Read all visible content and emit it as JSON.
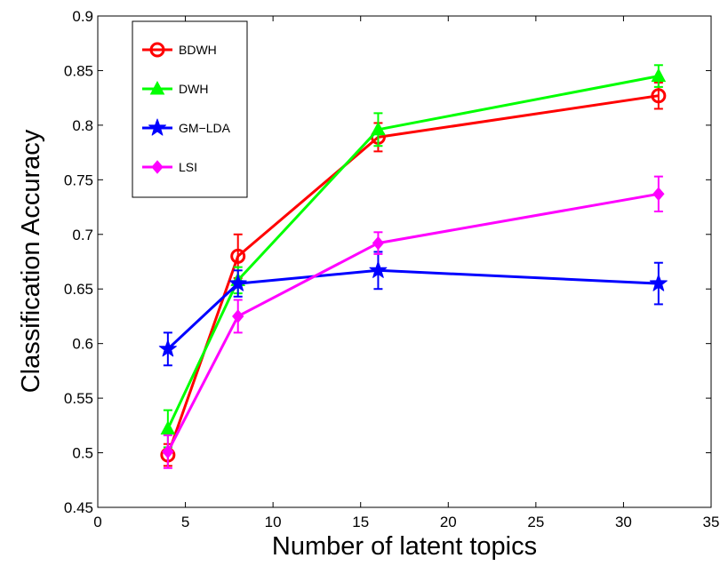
{
  "chart_data": {
    "type": "line",
    "xlabel": "Number of latent topics",
    "ylabel": "Classification Accuracy",
    "xlim": [
      0,
      35
    ],
    "ylim": [
      0.45,
      0.9
    ],
    "xticks": [
      0,
      5,
      10,
      15,
      20,
      25,
      30,
      35
    ],
    "yticks": [
      0.45,
      0.5,
      0.55,
      0.6,
      0.65,
      0.7,
      0.75,
      0.8,
      0.85,
      0.9
    ],
    "grid": false,
    "legend_position": "top-left",
    "x": [
      4,
      8,
      16,
      32
    ],
    "series": [
      {
        "name": "BDWH",
        "color": "#ff0000",
        "marker": "circle",
        "values": [
          0.498,
          0.68,
          0.789,
          0.827
        ],
        "errors": [
          0.01,
          0.02,
          0.013,
          0.012
        ]
      },
      {
        "name": "DWH",
        "color": "#00ff00",
        "marker": "triangle",
        "values": [
          0.522,
          0.658,
          0.796,
          0.845
        ],
        "errors": [
          0.017,
          0.012,
          0.015,
          0.01
        ]
      },
      {
        "name": "GM−LDA",
        "color": "#0000ff",
        "marker": "star",
        "values": [
          0.595,
          0.655,
          0.667,
          0.655
        ],
        "errors": [
          0.015,
          0.012,
          0.017,
          0.019
        ]
      },
      {
        "name": "LSI",
        "color": "#ff00ff",
        "marker": "diamond",
        "values": [
          0.501,
          0.625,
          0.692,
          0.737
        ],
        "errors": [
          0.015,
          0.015,
          0.01,
          0.016
        ]
      }
    ]
  }
}
